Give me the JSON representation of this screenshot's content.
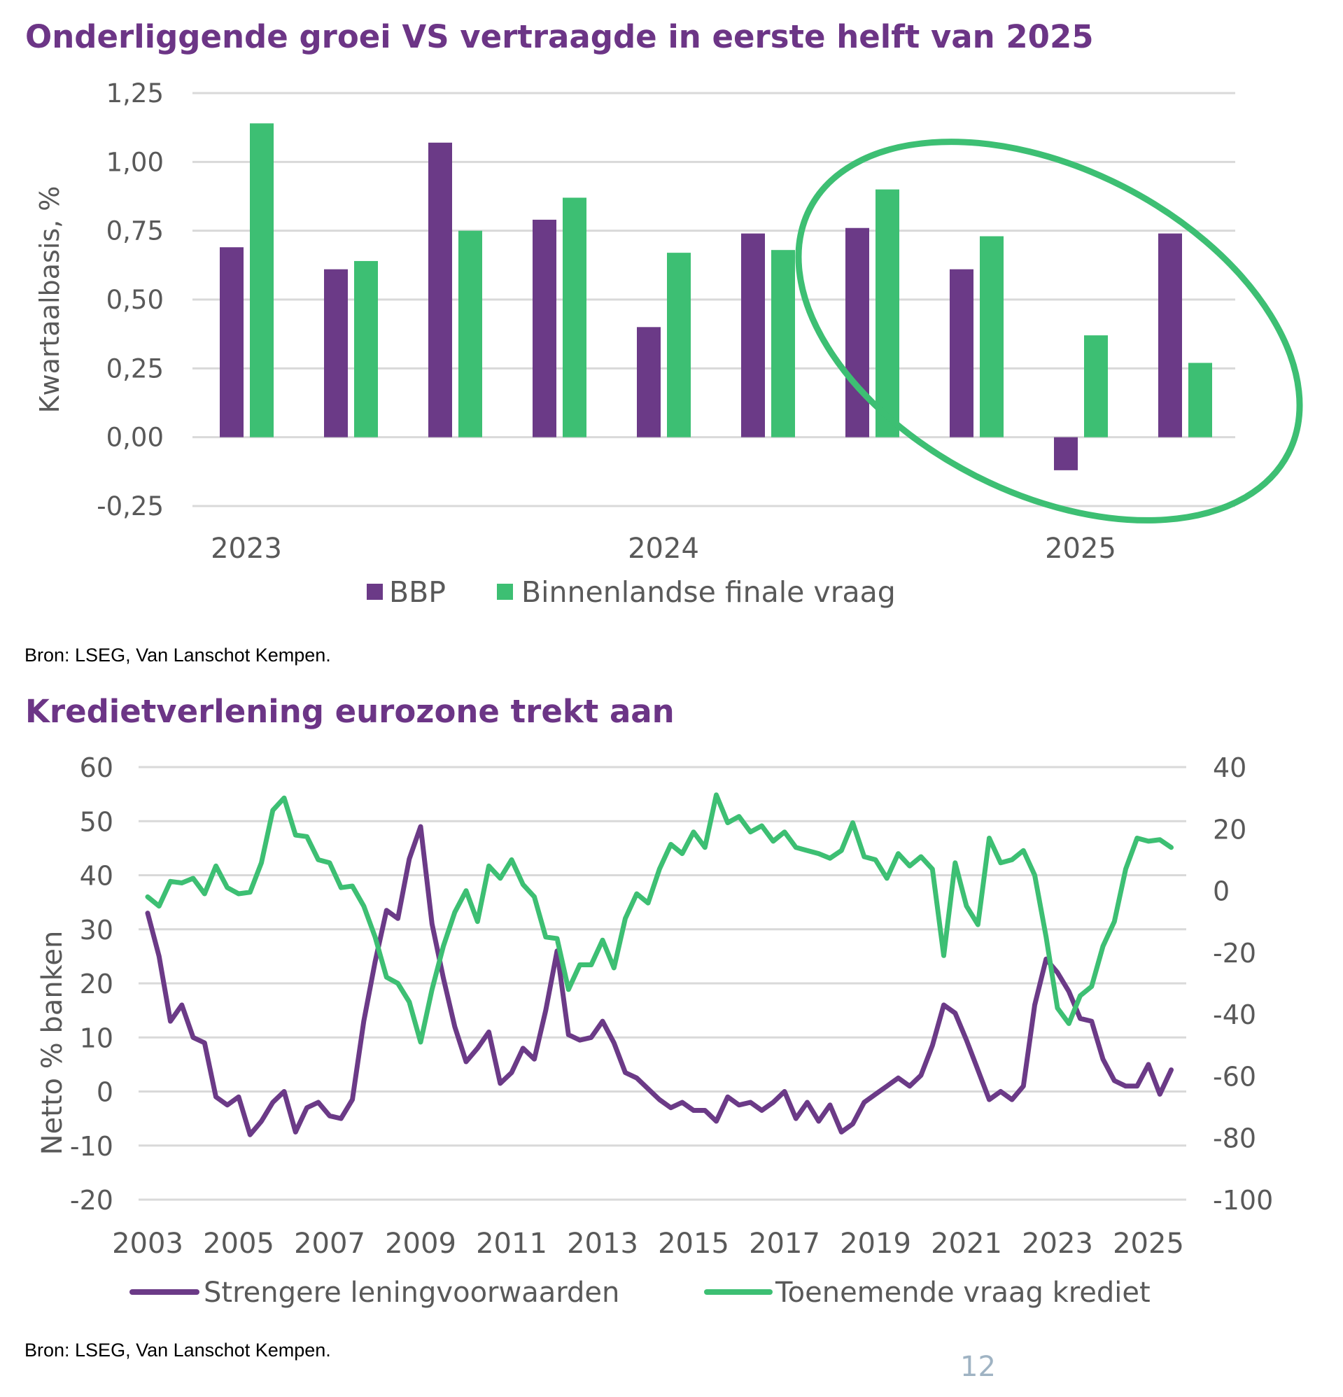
{
  "colors": {
    "purple": "#6b3a87",
    "green": "#3dbf73",
    "title": "#6c3586",
    "grid": "#d9d9d9",
    "text": "#595959",
    "page_number": "#9fb3c3"
  },
  "chart_data": [
    {
      "type": "bar",
      "title": "Onderliggende groei VS vertraagde in eerste helft van 2025",
      "ylabel": "Kwartaalbasis, %",
      "xlabel": "",
      "ylim": [
        -0.25,
        1.25
      ],
      "yticks": [
        "1,25",
        "1,00",
        "0,75",
        "0,50",
        "0,25",
        "0,00",
        "-0,25"
      ],
      "ytick_values": [
        1.25,
        1.0,
        0.75,
        0.5,
        0.25,
        0.0,
        -0.25
      ],
      "categories": [
        "2023 K1",
        "2023 K2",
        "2023 K3",
        "2023 K4",
        "2024 K1",
        "2024 K2",
        "2024 K3",
        "2024 K4",
        "2025 K1",
        "2025 K2"
      ],
      "xtick_labels": [
        {
          "label": "2023",
          "index": 0
        },
        {
          "label": "2024",
          "index": 4
        },
        {
          "label": "2025",
          "index": 8
        }
      ],
      "series": [
        {
          "name": "BBP",
          "color": "#6b3a87",
          "values": [
            0.69,
            0.61,
            1.07,
            0.79,
            0.4,
            0.74,
            0.76,
            0.61,
            -0.12,
            0.74
          ]
        },
        {
          "name": "Binnenlandse finale vraag",
          "color": "#3dbf73",
          "values": [
            1.14,
            0.64,
            0.75,
            0.87,
            0.67,
            0.68,
            0.9,
            0.73,
            0.37,
            0.27
          ]
        }
      ],
      "grid": true,
      "legend": "bottom",
      "annotation": "green ellipse highlighting 2024 K3 – 2025 K2",
      "source": "Bron: LSEG, Van Lanschot Kempen."
    },
    {
      "type": "line",
      "title": "Kredietverlening eurozone trekt aan",
      "ylabel": "Netto % banken",
      "ylim": [
        -20,
        60
      ],
      "y2lim": [
        -100,
        40
      ],
      "yticks": [
        "60",
        "50",
        "40",
        "30",
        "20",
        "10",
        "0",
        "-10",
        "-20"
      ],
      "ytick_values": [
        60,
        50,
        40,
        30,
        20,
        10,
        0,
        -10,
        -20
      ],
      "y2ticks": [
        "40",
        "20",
        "0",
        "-20",
        "-40",
        "-60",
        "-80",
        "-100"
      ],
      "y2tick_values": [
        40,
        20,
        0,
        -20,
        -40,
        -60,
        -80,
        -100
      ],
      "xticks": [
        "2003",
        "2005",
        "2007",
        "2009",
        "2011",
        "2013",
        "2015",
        "2017",
        "2019",
        "2021",
        "2023",
        "2025"
      ],
      "x_start": 2003,
      "x_step_years": 0.25,
      "series": [
        {
          "name": "Strengere leningvoorwaarden",
          "axis": "left",
          "color": "#6b3a87",
          "values": [
            33,
            25,
            13,
            16,
            10,
            9,
            -1,
            -2.5,
            -1,
            -8,
            -5.5,
            -2,
            0,
            -7.5,
            -3,
            -2,
            -4.5,
            -5,
            -1.5,
            13,
            24,
            33.5,
            32,
            43,
            49,
            31,
            21,
            12,
            5.5,
            8,
            11,
            1.5,
            3.5,
            8,
            6,
            15,
            26,
            10.5,
            9.5,
            10,
            13,
            9,
            3.5,
            2.5,
            0.5,
            -1.5,
            -3,
            -2,
            -3.5,
            -3.5,
            -5.5,
            -1,
            -2.5,
            -2,
            -3.5,
            -2,
            0,
            -5,
            -2,
            -5.5,
            -2.5,
            -7.5,
            -6,
            -2,
            -0.5,
            1,
            2.5,
            1,
            3,
            8.5,
            16,
            14.5,
            9.5,
            4,
            -1.5,
            0,
            -1.5,
            1,
            16,
            24.5,
            22,
            18.5,
            13.5,
            13,
            6,
            2,
            1,
            1,
            5,
            -0.5,
            4
          ]
        },
        {
          "name": "Toenemende vraag krediet",
          "axis": "right",
          "color": "#3dbf73",
          "values": [
            -2,
            -5,
            3,
            2.5,
            4,
            -1,
            8,
            1,
            -1,
            -0.5,
            9,
            26,
            30,
            18,
            17.5,
            10,
            9,
            1,
            1.5,
            -5,
            -15,
            -28,
            -30,
            -36,
            -49,
            -32,
            -18,
            -7,
            0,
            -10,
            8,
            4,
            10,
            2,
            -2,
            -15,
            -15.5,
            -32,
            -24,
            -24,
            -16,
            -25,
            -9,
            -1,
            -4,
            7,
            15,
            12,
            19,
            14,
            31,
            22,
            24,
            19,
            21,
            16,
            19,
            14,
            13,
            12,
            10.5,
            13,
            22,
            11,
            10,
            4,
            12,
            8,
            11,
            7,
            -21,
            9,
            -5,
            -11,
            17,
            9,
            10,
            13,
            5,
            -15,
            -38,
            -43,
            -34,
            -31,
            -18,
            -10,
            7,
            17,
            16,
            16.5,
            14
          ]
        }
      ],
      "grid": true,
      "legend": "bottom",
      "source": "Bron: LSEG, Van Lanschot Kempen."
    }
  ],
  "page_number": "12"
}
